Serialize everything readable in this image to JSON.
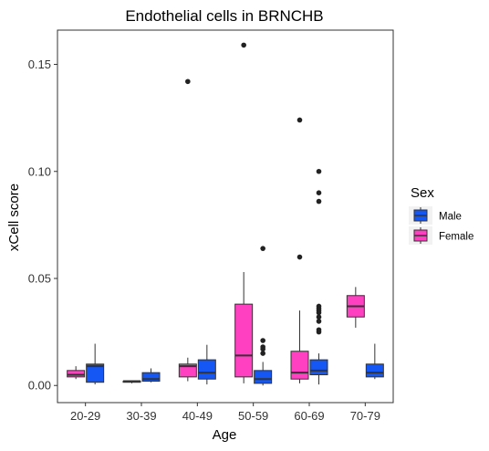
{
  "chart_data": {
    "type": "box",
    "title": "Endothelial cells in BRNCHB",
    "xlabel": "Age",
    "ylabel": "xCell score",
    "categories": [
      "20-29",
      "30-39",
      "40-49",
      "50-59",
      "60-69",
      "70-79"
    ],
    "ylim": [
      -0.008,
      0.166
    ],
    "yticks": [
      0.0,
      0.05,
      0.1,
      0.15
    ],
    "ytick_labels": [
      "0.00",
      "0.05",
      "0.10",
      "0.15"
    ],
    "grid": false,
    "legend": {
      "title": "Sex",
      "position": "right",
      "entries": [
        {
          "name": "Male",
          "color": "#1557f5"
        },
        {
          "name": "Female",
          "color": "#ff40c0"
        }
      ]
    },
    "series": [
      {
        "name": "Female",
        "color": "#ff40c0",
        "boxes": [
          {
            "category": "20-29",
            "whisker_low": 0.003,
            "q1": 0.004,
            "median": 0.005,
            "q3": 0.007,
            "whisker_high": 0.009,
            "outliers": []
          },
          {
            "category": "30-39",
            "whisker_low": 0.001,
            "q1": 0.0015,
            "median": 0.002,
            "q3": 0.002,
            "whisker_high": 0.002,
            "outliers": []
          },
          {
            "category": "40-49",
            "whisker_low": 0.002,
            "q1": 0.004,
            "median": 0.009,
            "q3": 0.01,
            "whisker_high": 0.013,
            "outliers": [
              0.142
            ]
          },
          {
            "category": "50-59",
            "whisker_low": 0.001,
            "q1": 0.004,
            "median": 0.014,
            "q3": 0.038,
            "whisker_high": 0.053,
            "outliers": [
              0.159
            ]
          },
          {
            "category": "60-69",
            "whisker_low": 0.001,
            "q1": 0.003,
            "median": 0.006,
            "q3": 0.016,
            "whisker_high": 0.035,
            "outliers": [
              0.06,
              0.124
            ]
          },
          {
            "category": "70-79",
            "whisker_low": 0.027,
            "q1": 0.032,
            "median": 0.037,
            "q3": 0.042,
            "whisker_high": 0.046,
            "outliers": []
          }
        ]
      },
      {
        "name": "Male",
        "color": "#1557f5",
        "boxes": [
          {
            "category": "20-29",
            "whisker_low": 0.0005,
            "q1": 0.0015,
            "median": 0.009,
            "q3": 0.01,
            "whisker_high": 0.0195,
            "outliers": []
          },
          {
            "category": "30-39",
            "whisker_low": 0.0015,
            "q1": 0.002,
            "median": 0.003,
            "q3": 0.006,
            "whisker_high": 0.008,
            "outliers": []
          },
          {
            "category": "40-49",
            "whisker_low": 0.0005,
            "q1": 0.003,
            "median": 0.006,
            "q3": 0.012,
            "whisker_high": 0.019,
            "outliers": []
          },
          {
            "category": "50-59",
            "whisker_low": 0.0,
            "q1": 0.001,
            "median": 0.003,
            "q3": 0.007,
            "whisker_high": 0.011,
            "outliers": [
              0.015,
              0.017,
              0.018,
              0.021,
              0.064
            ]
          },
          {
            "category": "60-69",
            "whisker_low": 0.0005,
            "q1": 0.005,
            "median": 0.007,
            "q3": 0.012,
            "whisker_high": 0.015,
            "outliers": [
              0.025,
              0.026,
              0.03,
              0.032,
              0.034,
              0.035,
              0.036,
              0.037,
              0.086,
              0.09,
              0.1
            ]
          },
          {
            "category": "70-79",
            "whisker_low": 0.003,
            "q1": 0.004,
            "median": 0.006,
            "q3": 0.01,
            "whisker_high": 0.0195,
            "outliers": []
          }
        ]
      }
    ]
  }
}
